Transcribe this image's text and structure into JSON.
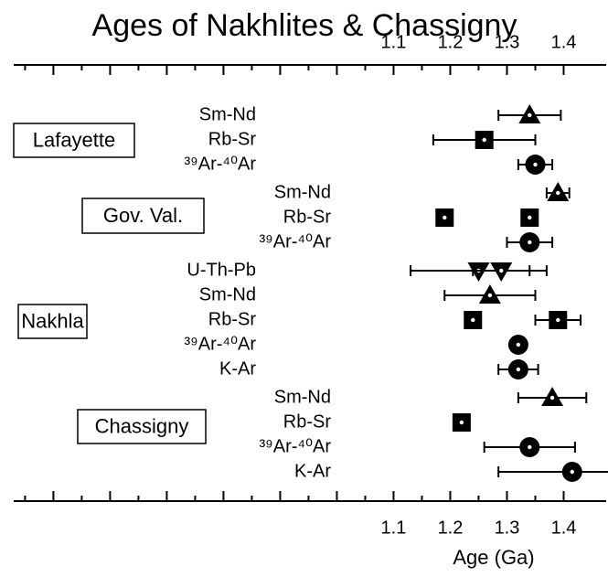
{
  "chart_data": {
    "type": "errorbar",
    "title": "Ages of Nakhlites & Chassigny",
    "xlabel": "Age (Ga)",
    "xlim": [
      0.43,
      1.475
    ],
    "xticks": [
      1.1,
      1.2,
      1.3,
      1.4
    ],
    "color": "#000000",
    "groups": [
      {
        "name": "Lafayette",
        "rows": [
          {
            "label": "Sm-Nd",
            "marker": "triangle",
            "values": [
              1.34
            ],
            "errors": [
              0.055
            ]
          },
          {
            "label": "Rb-Sr",
            "marker": "square",
            "values": [
              1.26
            ],
            "errors": [
              0.09
            ]
          },
          {
            "label": "³⁹Ar-⁴⁰Ar",
            "marker": "circle",
            "values": [
              1.35
            ],
            "errors": [
              0.03
            ]
          }
        ]
      },
      {
        "name": "Gov. Val.",
        "rows": [
          {
            "label": "Sm-Nd",
            "marker": "triangle",
            "values": [
              1.39
            ],
            "errors": [
              0.02
            ]
          },
          {
            "label": "Rb-Sr",
            "marker": "square",
            "values": [
              1.19,
              1.34
            ],
            "errors": [
              0.01,
              0.01
            ]
          },
          {
            "label": "³⁹Ar-⁴⁰Ar",
            "marker": "circle",
            "values": [
              1.34
            ],
            "errors": [
              0.04
            ]
          }
        ]
      },
      {
        "name": "Nakhla",
        "rows": [
          {
            "label": "U-Th-Pb",
            "marker": "triangle-down",
            "values": [
              1.25,
              1.29
            ],
            "errors": [
              0.12,
              0.05
            ]
          },
          {
            "label": "Sm-Nd",
            "marker": "triangle",
            "values": [
              1.27
            ],
            "errors": [
              0.08
            ]
          },
          {
            "label": "Rb-Sr",
            "marker": "square",
            "values": [
              1.24,
              1.39
            ],
            "errors": [
              0.01,
              0.04
            ]
          },
          {
            "label": "³⁹Ar-⁴⁰Ar",
            "marker": "circle",
            "values": [
              1.32
            ],
            "errors": [
              0.01
            ]
          },
          {
            "label": "K-Ar",
            "marker": "circle",
            "values": [
              1.32
            ],
            "errors": [
              0.035
            ]
          }
        ]
      },
      {
        "name": "Chassigny",
        "rows": [
          {
            "label": "Sm-Nd",
            "marker": "triangle",
            "values": [
              1.38
            ],
            "errors": [
              0.06
            ]
          },
          {
            "label": "Rb-Sr",
            "marker": "square",
            "values": [
              1.22
            ],
            "errors": [
              0.01
            ]
          },
          {
            "label": "³⁹Ar-⁴⁰Ar",
            "marker": "circle",
            "values": [
              1.34
            ],
            "errors": [
              0.08
            ]
          },
          {
            "label": "K-Ar",
            "marker": "circle",
            "values": [
              1.415
            ],
            "errors": [
              0.13
            ]
          }
        ]
      }
    ]
  }
}
